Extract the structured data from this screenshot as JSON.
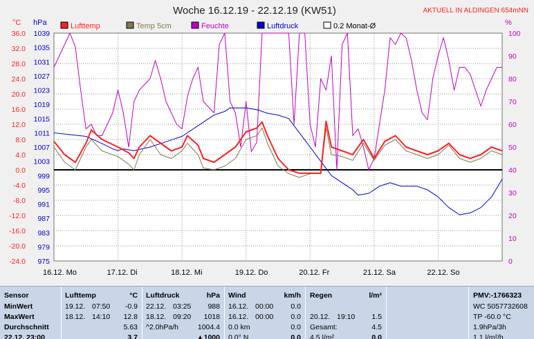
{
  "header": {
    "title": "Woche 16.12.19 - 22.12.19 (KW51)",
    "station": "AKTUELL IN ALDINGEN 654mNN",
    "unit_left_temp": "°C",
    "unit_left_press": "hPa",
    "unit_right": "%"
  },
  "legend": [
    {
      "label": "Lufttemp",
      "color": "#ff2020"
    },
    {
      "label": "Temp 5cm",
      "color": "#807850"
    },
    {
      "label": "Feuchte",
      "color": "#c000c0"
    },
    {
      "label": "Luftdruck",
      "color": "#0000d0"
    },
    {
      "label": "0.2 Monat-Ø",
      "color": "#ffffff"
    }
  ],
  "colors": {
    "temp_axis": "#ff2020",
    "press_axis": "#0000d0",
    "humid_axis": "#c000c0",
    "plot_bg": "#ffffff",
    "grid": "#909090",
    "zero_line": "#000000",
    "stats_bg": "#c8d6e8"
  },
  "chart_data": {
    "type": "line",
    "title": "Woche 16.12.19 - 22.12.19 (KW51)",
    "x_range_hours": [
      0,
      168
    ],
    "x_ticks": [
      "16.12. Mo",
      "17.12. Di",
      "18.12. Mi",
      "19.12. Do",
      "20.12. Fr",
      "21.12. Sa",
      "22.12. So"
    ],
    "axes": {
      "temp": {
        "unit": "°C",
        "range": [
          -24,
          36
        ],
        "ticks": [
          "36.0",
          "32.0",
          "28.0",
          "24.0",
          "20.0",
          "16.0",
          "12.0",
          "8.0",
          "4.0",
          "0.0",
          "-4.0",
          "-8.0",
          "-12.0",
          "-16.0",
          "-20.0",
          "-24.0"
        ]
      },
      "pressure": {
        "unit": "hPa",
        "range": [
          975,
          1039
        ],
        "ticks": [
          "1039",
          "1035",
          "1031",
          "1027",
          "1023",
          "1019",
          "1015",
          "1011",
          "1007",
          "1003",
          "999",
          "995",
          "991",
          "987",
          "983",
          "979",
          "975"
        ]
      },
      "humidity": {
        "unit": "%",
        "range": [
          0,
          100
        ],
        "ticks": [
          "100",
          "90",
          "80",
          "70",
          "60",
          "50",
          "40",
          "30",
          "20",
          "10",
          "0"
        ]
      }
    },
    "grid": true,
    "series": [
      {
        "name": "Lufttemp",
        "axis": "temp",
        "color": "#ff2020",
        "width": 2,
        "x": [
          0,
          4,
          8,
          12,
          14,
          18,
          24,
          28,
          30,
          32,
          36,
          40,
          44,
          48,
          50,
          54,
          56,
          60,
          64,
          68,
          72,
          76,
          78,
          80,
          84,
          88,
          92,
          96,
          100,
          102,
          104,
          108,
          112,
          116,
          120,
          124,
          128,
          132,
          136,
          140,
          144,
          148,
          152,
          156,
          160,
          164,
          168
        ],
        "y": [
          7.5,
          4,
          2,
          7,
          10.5,
          8,
          6,
          4.5,
          3,
          6,
          9,
          7,
          5,
          6,
          9,
          6.5,
          3,
          2,
          4,
          6,
          10,
          11,
          12.6,
          9,
          3,
          0,
          -0.9,
          -0.9,
          -0.9,
          12.8,
          6,
          5,
          4,
          8,
          3,
          7.5,
          9,
          6,
          5,
          4,
          5,
          7,
          4,
          3,
          4,
          6,
          5
        ]
      },
      {
        "name": "Temp 5cm",
        "axis": "temp",
        "color": "#807850",
        "width": 1,
        "x": [
          0,
          4,
          8,
          12,
          14,
          18,
          24,
          28,
          30,
          32,
          36,
          40,
          44,
          48,
          50,
          54,
          56,
          60,
          64,
          68,
          72,
          76,
          78,
          80,
          84,
          88,
          92,
          96,
          100,
          102,
          104,
          108,
          112,
          116,
          120,
          124,
          128,
          132,
          136,
          140,
          144,
          148,
          152,
          156,
          160,
          164,
          168
        ],
        "y": [
          6,
          2,
          0,
          6,
          8,
          5,
          3.5,
          1.5,
          0,
          4,
          8,
          4,
          3,
          5,
          7,
          4,
          0.5,
          0,
          1,
          3,
          8,
          9,
          11,
          7,
          1,
          -1,
          -2,
          -1,
          -1,
          11,
          4,
          3.5,
          2.5,
          7,
          2.5,
          6.5,
          8,
          5,
          4,
          3,
          4,
          6.5,
          3,
          2,
          3,
          5,
          4
        ]
      },
      {
        "name": "Feuchte",
        "axis": "humidity",
        "color": "#c000c0",
        "width": 1,
        "x": [
          0,
          4,
          6,
          8,
          10,
          12,
          14,
          16,
          18,
          22,
          24,
          26,
          28,
          30,
          32,
          36,
          38,
          40,
          42,
          46,
          48,
          50,
          52,
          54,
          56,
          60,
          62,
          64,
          66,
          68,
          70,
          72,
          74,
          76,
          78,
          80,
          84,
          86,
          88,
          90,
          92,
          94,
          96,
          98,
          100,
          102,
          104,
          106,
          108,
          110,
          112,
          114,
          116,
          118,
          120,
          122,
          124,
          126,
          128,
          130,
          132,
          134,
          136,
          138,
          140,
          142,
          144,
          146,
          148,
          150,
          152,
          154,
          156,
          158,
          160,
          162,
          164,
          166,
          168
        ],
        "y": [
          85,
          95,
          100,
          94,
          75,
          58,
          60,
          55,
          55,
          65,
          75,
          65,
          50,
          70,
          75,
          80,
          88,
          80,
          70,
          60,
          58,
          72,
          80,
          85,
          70,
          65,
          95,
          100,
          70,
          65,
          50,
          70,
          48,
          52,
          100,
          100,
          100,
          100,
          100,
          60,
          100,
          100,
          60,
          50,
          80,
          75,
          90,
          40,
          95,
          100,
          55,
          58,
          50,
          40,
          45,
          60,
          75,
          98,
          95,
          100,
          98,
          88,
          75,
          65,
          62,
          80,
          90,
          98,
          88,
          75,
          85,
          85,
          82,
          75,
          68,
          75,
          80,
          85,
          85
        ]
      },
      {
        "name": "Luftdruck",
        "axis": "pressure",
        "color": "#0000d0",
        "width": 1,
        "x": [
          0,
          6,
          12,
          18,
          22,
          24,
          26,
          30,
          36,
          42,
          48,
          54,
          60,
          64,
          66,
          70,
          72,
          76,
          78,
          80,
          84,
          88,
          90,
          92,
          94,
          96,
          98,
          100,
          102,
          104,
          108,
          112,
          114,
          118,
          120,
          122,
          124,
          126,
          128,
          130,
          132,
          136,
          140,
          144,
          148,
          150,
          152,
          156,
          160,
          164,
          168
        ],
        "y": [
          1011,
          1010.5,
          1010,
          1008,
          1006.5,
          1006,
          1006.5,
          1006,
          1007,
          1008.5,
          1010,
          1013,
          1016,
          1017,
          1018,
          1018,
          1018,
          1017.5,
          1017,
          1016.5,
          1016,
          1015,
          1013,
          1011,
          1009,
          1007,
          1005,
          1003,
          1001,
          999,
          997,
          995,
          993.5,
          994,
          995,
          996,
          996.5,
          997,
          996.5,
          996,
          996,
          996,
          995,
          993,
          990,
          989,
          988,
          988.5,
          990,
          993,
          998
        ]
      }
    ]
  },
  "stats": {
    "sensor": {
      "header": "Sensor",
      "labels": [
        "MinWert",
        "MaxWert",
        "Durchschnitt",
        "22.12. 23:00"
      ]
    },
    "lufttemp": {
      "header": "Lufttemp",
      "unit": "°C",
      "rows": [
        [
          "19.12.",
          "07:50",
          "-0.9"
        ],
        [
          "18.12.",
          "14:10",
          "12.8"
        ],
        [
          "",
          "",
          "5.63"
        ],
        [
          "",
          "",
          "3.7"
        ]
      ]
    },
    "luftdruck": {
      "header": "Luftdruck",
      "unit": "hPa",
      "rows": [
        [
          "22.12.",
          "03:25",
          "988"
        ],
        [
          "18.12.",
          "09:20",
          "1018"
        ],
        [
          "^2.0hPa/h",
          "",
          "1004.4"
        ],
        [
          "",
          "",
          "▲1000"
        ]
      ]
    },
    "wind": {
      "header": "Wind",
      "unit": "km/h",
      "rows": [
        [
          "16.12.",
          "00:00",
          "0.0"
        ],
        [
          "16.12.",
          "00:00",
          "0.0"
        ],
        [
          "0.0 km",
          "",
          "0.0"
        ],
        [
          "0.0° N",
          "",
          "0.0"
        ]
      ]
    },
    "regen": {
      "header": "Regen",
      "unit": "l/m²",
      "rows": [
        [
          "",
          "",
          ""
        ],
        [
          "20.12.",
          "19:10",
          "1.5"
        ],
        [
          "Gesamt:",
          "",
          "4.5"
        ],
        [
          "4.5 l/m²",
          "",
          "0.0"
        ]
      ]
    },
    "pmv": {
      "header": "PMV:-1766323",
      "rows": [
        "WC 5057732608",
        "TP -60.0 °C",
        "1.9hPa/3h",
        "1.1 l/m²/h"
      ]
    }
  }
}
